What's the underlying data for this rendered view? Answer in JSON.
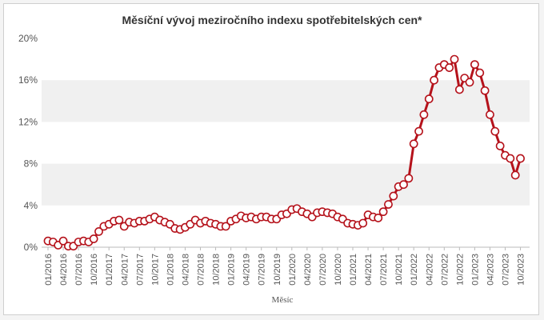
{
  "chart_data": {
    "type": "line",
    "title": "Měsíční vývoj meziročního indexu spotřebitelských cen*",
    "xlabel": "Měsíc",
    "ylabel": "",
    "ylim": [
      0,
      20
    ],
    "yticks": [
      0,
      4,
      8,
      12,
      16,
      20
    ],
    "ytick_labels": [
      "0%",
      "4%",
      "8%",
      "12%",
      "16%",
      "20%"
    ],
    "xtick_labels": [
      "01/2016",
      "04/2016",
      "07/2016",
      "10/2016",
      "01/2017",
      "04/2017",
      "07/2017",
      "10/2017",
      "01/2018",
      "04/2018",
      "07/2018",
      "10/2018",
      "01/2019",
      "04/2019",
      "07/2019",
      "10/2019",
      "01/2020",
      "04/2020",
      "07/2020",
      "10/2020",
      "01/2021",
      "04/2021",
      "07/2021",
      "10/2021",
      "01/2022",
      "04/2022",
      "07/2022",
      "10/2022",
      "01/2023",
      "04/2023",
      "07/2023",
      "10/2023"
    ],
    "grid": "alternating horizontal bands",
    "legend": "none",
    "colors": {
      "line": "#b5121b",
      "band": "#f0f0f0",
      "marker_fill": "#ffffff"
    },
    "series": [
      {
        "x": [
          "01/2016",
          "02/2016",
          "03/2016",
          "04/2016",
          "05/2016",
          "06/2016",
          "07/2016",
          "08/2016",
          "09/2016",
          "10/2016",
          "11/2016",
          "12/2016",
          "01/2017",
          "02/2017",
          "03/2017",
          "04/2017",
          "05/2017",
          "06/2017",
          "07/2017",
          "08/2017",
          "09/2017",
          "10/2017",
          "11/2017",
          "12/2017",
          "01/2018",
          "02/2018",
          "03/2018",
          "04/2018",
          "05/2018",
          "06/2018",
          "07/2018",
          "08/2018",
          "09/2018",
          "10/2018",
          "11/2018",
          "12/2018",
          "01/2019",
          "02/2019",
          "03/2019",
          "04/2019",
          "05/2019",
          "06/2019",
          "07/2019",
          "08/2019",
          "09/2019",
          "10/2019",
          "11/2019",
          "12/2019",
          "01/2020",
          "02/2020",
          "03/2020",
          "04/2020",
          "05/2020",
          "06/2020",
          "07/2020",
          "08/2020",
          "09/2020",
          "10/2020",
          "11/2020",
          "12/2020",
          "01/2021",
          "02/2021",
          "03/2021",
          "04/2021",
          "05/2021",
          "06/2021",
          "07/2021",
          "08/2021",
          "09/2021",
          "10/2021",
          "11/2021",
          "12/2021",
          "01/2022",
          "02/2022",
          "03/2022",
          "04/2022",
          "05/2022",
          "06/2022",
          "07/2022",
          "08/2022",
          "09/2022",
          "10/2022",
          "11/2022",
          "12/2022",
          "01/2023",
          "02/2023",
          "03/2023",
          "04/2023",
          "05/2023",
          "06/2023",
          "07/2023",
          "08/2023",
          "09/2023",
          "10/2023"
        ],
        "values": [
          0.6,
          0.5,
          0.2,
          0.6,
          0.1,
          0.1,
          0.5,
          0.6,
          0.5,
          0.8,
          1.5,
          2.0,
          2.2,
          2.5,
          2.6,
          2.0,
          2.4,
          2.3,
          2.5,
          2.5,
          2.7,
          2.9,
          2.6,
          2.4,
          2.2,
          1.8,
          1.7,
          1.9,
          2.2,
          2.6,
          2.3,
          2.5,
          2.3,
          2.2,
          2.0,
          2.0,
          2.5,
          2.7,
          3.0,
          2.8,
          2.9,
          2.7,
          2.9,
          2.9,
          2.7,
          2.7,
          3.1,
          3.2,
          3.6,
          3.7,
          3.4,
          3.2,
          2.9,
          3.3,
          3.4,
          3.3,
          3.2,
          2.9,
          2.7,
          2.3,
          2.2,
          2.1,
          2.3,
          3.1,
          2.9,
          2.8,
          3.4,
          4.1,
          4.9,
          5.8,
          6.0,
          6.6,
          9.9,
          11.1,
          12.7,
          14.2,
          16.0,
          17.2,
          17.5,
          17.2,
          18.0,
          15.1,
          16.2,
          15.8,
          17.5,
          16.7,
          15.0,
          12.7,
          11.1,
          9.7,
          8.8,
          8.5,
          6.9,
          8.5
        ]
      }
    ]
  }
}
